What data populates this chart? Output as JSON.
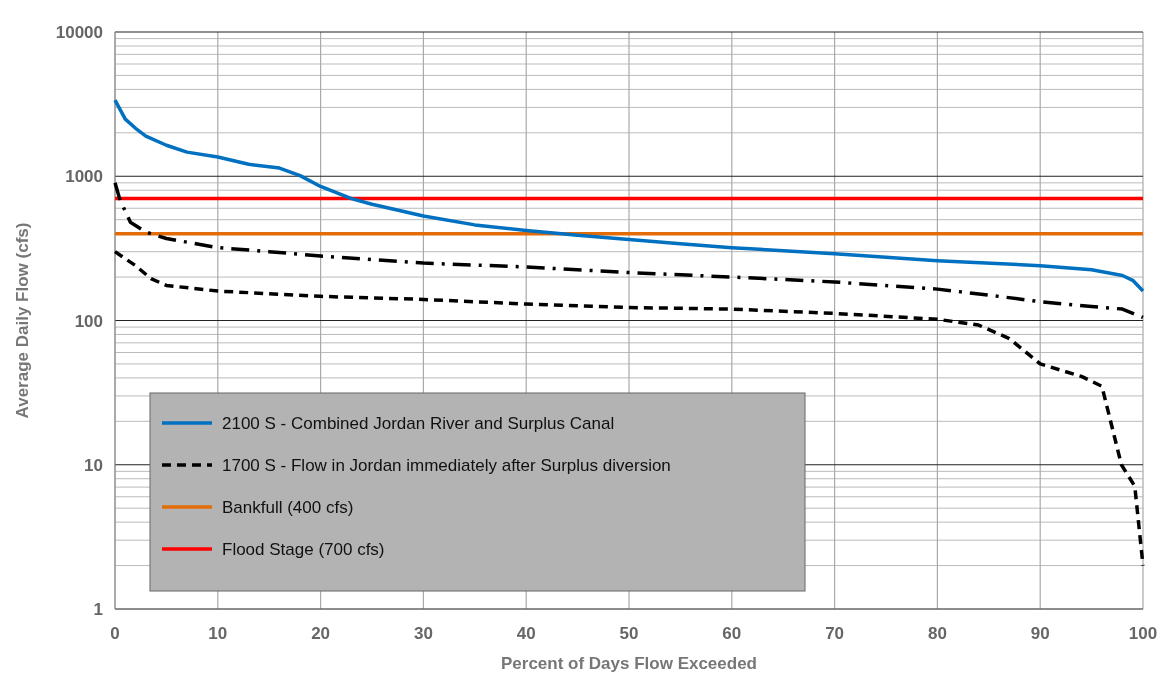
{
  "chart_data": {
    "type": "line",
    "xlabel": "Percent of Days Flow Exceeded",
    "ylabel": "Average Daily Flow (cfs)",
    "log": "y",
    "grid": true,
    "legend": "bottom left",
    "xlim": [
      0,
      100
    ],
    "xticks": [
      0,
      10,
      20,
      30,
      40,
      50,
      60,
      70,
      80,
      90,
      100
    ],
    "ylim": [
      1,
      10000
    ],
    "yticks": [
      1,
      10,
      100,
      1000,
      10000
    ],
    "series": [
      {
        "color": "#000000",
        "line_style": "dashdot",
        "x": [
          0,
          0.5,
          1.5,
          3,
          5,
          10,
          15,
          20,
          30,
          40,
          50,
          60,
          70,
          80,
          85,
          90,
          95,
          98,
          100
        ],
        "values": [
          900,
          680,
          480,
          410,
          370,
          320,
          300,
          280,
          250,
          235,
          215,
          200,
          185,
          165,
          150,
          135,
          125,
          120,
          105
        ]
      },
      {
        "name": "2100 S - Combined Jordan River and Surplus Canal",
        "color": "#0070c0",
        "line_style": "solid",
        "x": [
          0,
          1,
          2,
          3,
          5,
          7,
          10,
          13,
          16,
          18,
          20,
          23,
          25,
          30,
          35,
          40,
          45,
          50,
          55,
          60,
          70,
          80,
          90,
          95,
          98,
          99,
          100
        ],
        "values": [
          3370,
          2490,
          2150,
          1900,
          1640,
          1470,
          1360,
          1210,
          1140,
          1010,
          850,
          700,
          640,
          530,
          460,
          420,
          390,
          365,
          340,
          320,
          290,
          260,
          240,
          225,
          205,
          190,
          160
        ]
      },
      {
        "name": "1700 S - Flow in Jordan immediately after Surplus diversion",
        "color": "#000000",
        "line_style": "dashed",
        "x": [
          0,
          2,
          3.5,
          5,
          10,
          20,
          30,
          40,
          50,
          60,
          70,
          80,
          84,
          87,
          90,
          94,
          96,
          97.9,
          99.2,
          100
        ],
        "values": [
          300,
          240,
          195,
          175,
          160,
          147,
          140,
          130,
          123,
          120,
          112,
          102,
          93,
          75,
          50,
          41,
          35,
          10,
          7.1,
          2
        ]
      }
    ],
    "ref_lines": [
      {
        "axis": "y",
        "value": 400,
        "label": "Bankfull (400 cfs)",
        "color": "#e36c09"
      },
      {
        "axis": "y",
        "value": 700,
        "label": "Flood Stage (700 cfs)",
        "color": "#ff0000"
      }
    ]
  }
}
